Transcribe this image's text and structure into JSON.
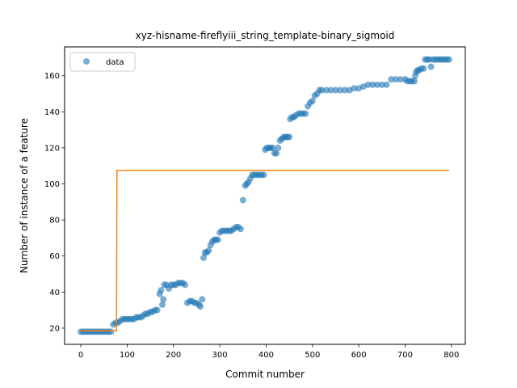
{
  "chart_data": {
    "type": "scatter",
    "title": "xyz-hisname-fireflyiii_string_template-binary_sigmoid",
    "xlabel": "Commit number",
    "ylabel": "Number of instance of a feature",
    "xlim": [
      -35,
      830
    ],
    "ylim": [
      11,
      176
    ],
    "xticks": [
      0,
      100,
      200,
      300,
      400,
      500,
      600,
      700,
      800
    ],
    "yticks": [
      20,
      40,
      60,
      80,
      100,
      120,
      140,
      160
    ],
    "grid": false,
    "legend": {
      "position": "top-left",
      "entries": [
        "data"
      ]
    },
    "colors": {
      "data": "#1f77b4",
      "fit": "#ff7f0e"
    },
    "series": [
      {
        "name": "data",
        "kind": "scatter",
        "points": [
          [
            0,
            18
          ],
          [
            5,
            18
          ],
          [
            10,
            18
          ],
          [
            15,
            18
          ],
          [
            20,
            18
          ],
          [
            25,
            18
          ],
          [
            30,
            18
          ],
          [
            35,
            18
          ],
          [
            40,
            18
          ],
          [
            45,
            18
          ],
          [
            50,
            18
          ],
          [
            55,
            18
          ],
          [
            60,
            18
          ],
          [
            65,
            18
          ],
          [
            70,
            22
          ],
          [
            75,
            23
          ],
          [
            80,
            23
          ],
          [
            85,
            24
          ],
          [
            90,
            25
          ],
          [
            95,
            25
          ],
          [
            100,
            25
          ],
          [
            105,
            25
          ],
          [
            110,
            25
          ],
          [
            115,
            25
          ],
          [
            120,
            26
          ],
          [
            125,
            26
          ],
          [
            130,
            26
          ],
          [
            135,
            27
          ],
          [
            140,
            28
          ],
          [
            145,
            28
          ],
          [
            150,
            29
          ],
          [
            155,
            29
          ],
          [
            160,
            30
          ],
          [
            165,
            30
          ],
          [
            170,
            39
          ],
          [
            173,
            41
          ],
          [
            176,
            33
          ],
          [
            178,
            36
          ],
          [
            180,
            44
          ],
          [
            185,
            44
          ],
          [
            190,
            42
          ],
          [
            195,
            44
          ],
          [
            200,
            44
          ],
          [
            205,
            44
          ],
          [
            210,
            45
          ],
          [
            215,
            45
          ],
          [
            220,
            45
          ],
          [
            225,
            44
          ],
          [
            230,
            34
          ],
          [
            235,
            35
          ],
          [
            240,
            35
          ],
          [
            245,
            34
          ],
          [
            250,
            34
          ],
          [
            255,
            33
          ],
          [
            258,
            32
          ],
          [
            262,
            36
          ],
          [
            265,
            59
          ],
          [
            268,
            62
          ],
          [
            272,
            62
          ],
          [
            276,
            63
          ],
          [
            280,
            66
          ],
          [
            284,
            68
          ],
          [
            288,
            69
          ],
          [
            292,
            69
          ],
          [
            296,
            69
          ],
          [
            300,
            73
          ],
          [
            305,
            74
          ],
          [
            310,
            74
          ],
          [
            315,
            74
          ],
          [
            320,
            74
          ],
          [
            325,
            74
          ],
          [
            330,
            75
          ],
          [
            335,
            76
          ],
          [
            340,
            76
          ],
          [
            345,
            75
          ],
          [
            350,
            91
          ],
          [
            355,
            99
          ],
          [
            358,
            100
          ],
          [
            362,
            101
          ],
          [
            366,
            103
          ],
          [
            370,
            105
          ],
          [
            375,
            105
          ],
          [
            380,
            105
          ],
          [
            385,
            105
          ],
          [
            390,
            105
          ],
          [
            395,
            105
          ],
          [
            398,
            119
          ],
          [
            402,
            120
          ],
          [
            406,
            120
          ],
          [
            410,
            120
          ],
          [
            414,
            120
          ],
          [
            418,
            117
          ],
          [
            422,
            117
          ],
          [
            426,
            120
          ],
          [
            430,
            124
          ],
          [
            434,
            125
          ],
          [
            438,
            126
          ],
          [
            442,
            126
          ],
          [
            446,
            126
          ],
          [
            450,
            126
          ],
          [
            452,
            136
          ],
          [
            456,
            137
          ],
          [
            460,
            137
          ],
          [
            464,
            138
          ],
          [
            470,
            139
          ],
          [
            475,
            139
          ],
          [
            480,
            139
          ],
          [
            485,
            139
          ],
          [
            490,
            143
          ],
          [
            495,
            145
          ],
          [
            500,
            146
          ],
          [
            505,
            149
          ],
          [
            510,
            150
          ],
          [
            515,
            152
          ],
          [
            520,
            152
          ],
          [
            530,
            152
          ],
          [
            540,
            152
          ],
          [
            550,
            152
          ],
          [
            560,
            152
          ],
          [
            570,
            152
          ],
          [
            580,
            152
          ],
          [
            590,
            153
          ],
          [
            600,
            153
          ],
          [
            610,
            154
          ],
          [
            620,
            155
          ],
          [
            630,
            155
          ],
          [
            640,
            155
          ],
          [
            650,
            155
          ],
          [
            660,
            155
          ],
          [
            670,
            158
          ],
          [
            680,
            158
          ],
          [
            690,
            158
          ],
          [
            700,
            158
          ],
          [
            705,
            157
          ],
          [
            710,
            157
          ],
          [
            715,
            157
          ],
          [
            720,
            157
          ],
          [
            722,
            160
          ],
          [
            724,
            162
          ],
          [
            727,
            163
          ],
          [
            730,
            163
          ],
          [
            735,
            164
          ],
          [
            740,
            164
          ],
          [
            743,
            169
          ],
          [
            748,
            169
          ],
          [
            752,
            169
          ],
          [
            756,
            165
          ],
          [
            760,
            169
          ],
          [
            765,
            169
          ],
          [
            770,
            169
          ],
          [
            775,
            169
          ],
          [
            780,
            169
          ],
          [
            785,
            169
          ],
          [
            790,
            169
          ],
          [
            795,
            169
          ]
        ]
      },
      {
        "kind": "line",
        "points": [
          [
            0,
            18.5
          ],
          [
            77,
            18.5
          ],
          [
            78,
            107.5
          ],
          [
            795,
            107.5
          ]
        ]
      }
    ]
  }
}
